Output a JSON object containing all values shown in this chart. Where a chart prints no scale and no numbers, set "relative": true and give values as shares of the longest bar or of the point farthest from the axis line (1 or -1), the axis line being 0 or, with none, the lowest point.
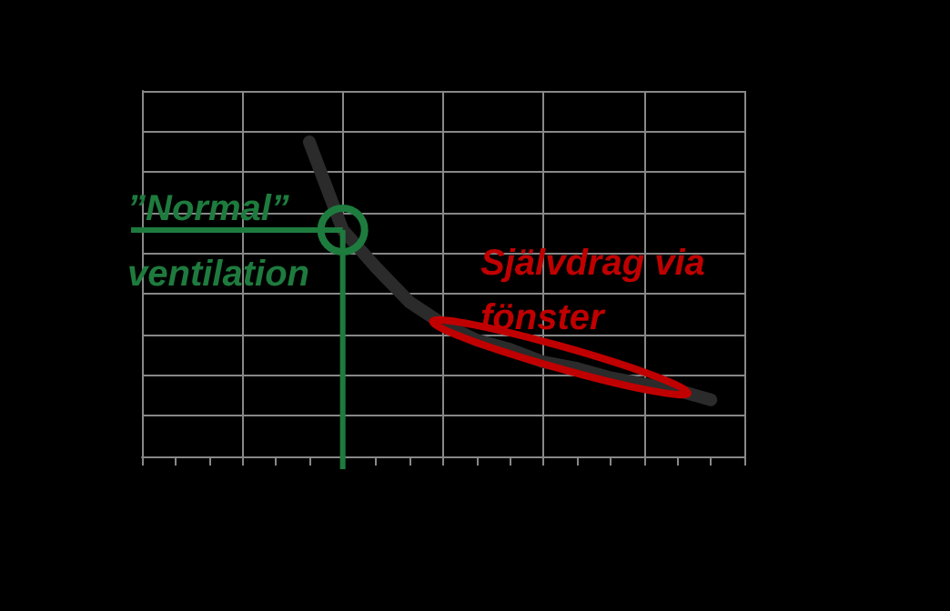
{
  "chart_data": {
    "type": "line",
    "relative": true,
    "categories": [
      null,
      null,
      null,
      null,
      null,
      null,
      null,
      null,
      null,
      null,
      null,
      null,
      null,
      null,
      null,
      null,
      null,
      null,
      null
    ],
    "series": [
      {
        "color": "#2b2b2b",
        "values": [
          null,
          null,
          null,
          null,
          null,
          1,
          0.72,
          0.6,
          0.49,
          0.42,
          0.37,
          0.34,
          0.3,
          0.28,
          0.25,
          0.23,
          0.21,
          0.18,
          null
        ]
      }
    ],
    "annotations": [
      "”Normal”\nventilation",
      "Självdrag via\nfönster"
    ],
    "ref_lines": [
      {
        "axis": "y",
        "value": 0.72,
        "color": "#1e7b3e"
      }
    ],
    "grid": true,
    "marker": "none",
    "line_style": "solid"
  }
}
